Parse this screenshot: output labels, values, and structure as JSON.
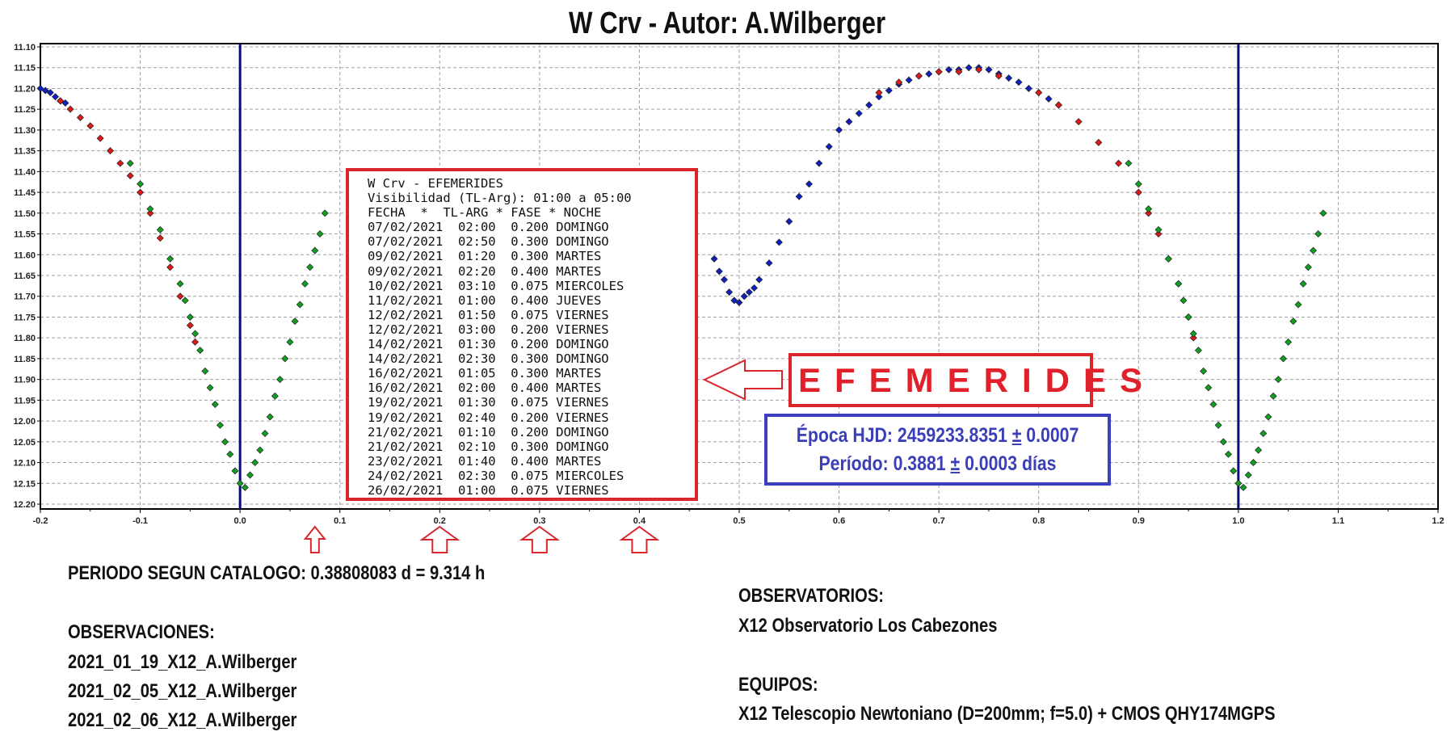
{
  "title": "W Crv - Autor: A.Wilberger",
  "colors": {
    "blue_series": "#1020c0",
    "red_series": "#e01818",
    "green_series": "#10a020",
    "epoch_line": "#0a0a80",
    "grid": "#a0a0a0",
    "ephem_border": "#d9262c",
    "epoca_border": "#3b3fc0"
  },
  "chart_data": {
    "type": "scatter",
    "title": "W Crv - Autor: A.Wilberger",
    "xlabel": "",
    "ylabel": "",
    "xlim": [
      -0.2,
      1.2
    ],
    "ylim": [
      12.2,
      11.1
    ],
    "y_inverted": true,
    "grid": true,
    "x_ticks": [
      "-0.2",
      "-0.1",
      "0.0",
      "0.1",
      "0.2",
      "0.3",
      "0.4",
      "0.5",
      "0.6",
      "0.7",
      "0.8",
      "0.9",
      "1.0",
      "1.1",
      "1.2"
    ],
    "y_ticks": [
      "11.10",
      "11.15",
      "11.20",
      "11.25",
      "11.30",
      "11.35",
      "11.40",
      "11.45",
      "11.50",
      "11.55",
      "11.60",
      "11.65",
      "11.70",
      "11.75",
      "11.80",
      "11.85",
      "11.90",
      "11.95",
      "12.00",
      "12.05",
      "12.10",
      "12.15",
      "12.20"
    ],
    "vertical_lines": [
      0.0,
      1.0
    ],
    "series": [
      {
        "color": "#1020c0",
        "points": [
          [
            -0.2,
            11.2
          ],
          [
            -0.195,
            11.205
          ],
          [
            -0.19,
            11.21
          ],
          [
            -0.185,
            11.22
          ],
          [
            -0.18,
            11.23
          ],
          [
            -0.175,
            11.235
          ],
          [
            0.475,
            11.61
          ],
          [
            0.48,
            11.64
          ],
          [
            0.485,
            11.66
          ],
          [
            0.49,
            11.69
          ],
          [
            0.495,
            11.71
          ],
          [
            0.5,
            11.715
          ],
          [
            0.505,
            11.7
          ],
          [
            0.51,
            11.69
          ],
          [
            0.515,
            11.68
          ],
          [
            0.52,
            11.66
          ],
          [
            0.53,
            11.62
          ],
          [
            0.54,
            11.57
          ],
          [
            0.55,
            11.52
          ],
          [
            0.56,
            11.46
          ],
          [
            0.57,
            11.43
          ],
          [
            0.58,
            11.38
          ],
          [
            0.59,
            11.34
          ],
          [
            0.6,
            11.3
          ],
          [
            0.61,
            11.28
          ],
          [
            0.62,
            11.26
          ],
          [
            0.63,
            11.24
          ],
          [
            0.64,
            11.22
          ],
          [
            0.65,
            11.205
          ],
          [
            0.66,
            11.19
          ],
          [
            0.67,
            11.18
          ],
          [
            0.68,
            11.17
          ],
          [
            0.69,
            11.165
          ],
          [
            0.7,
            11.16
          ],
          [
            0.71,
            11.155
          ],
          [
            0.72,
            11.155
          ],
          [
            0.73,
            11.15
          ],
          [
            0.74,
            11.15
          ],
          [
            0.75,
            11.155
          ],
          [
            0.76,
            11.165
          ],
          [
            0.77,
            11.175
          ],
          [
            0.78,
            11.185
          ],
          [
            0.79,
            11.2
          ],
          [
            0.8,
            11.21
          ],
          [
            0.81,
            11.225
          ],
          [
            0.82,
            11.24
          ]
        ]
      },
      {
        "color": "#e01818",
        "points": [
          [
            -0.18,
            11.23
          ],
          [
            -0.17,
            11.25
          ],
          [
            -0.16,
            11.27
          ],
          [
            -0.15,
            11.29
          ],
          [
            -0.14,
            11.32
          ],
          [
            -0.13,
            11.35
          ],
          [
            -0.12,
            11.38
          ],
          [
            -0.11,
            11.41
          ],
          [
            -0.1,
            11.45
          ],
          [
            -0.09,
            11.5
          ],
          [
            -0.08,
            11.56
          ],
          [
            -0.07,
            11.63
          ],
          [
            -0.06,
            11.7
          ],
          [
            -0.05,
            11.77
          ],
          [
            -0.045,
            11.81
          ],
          [
            0.64,
            11.21
          ],
          [
            0.66,
            11.185
          ],
          [
            0.68,
            11.17
          ],
          [
            0.7,
            11.16
          ],
          [
            0.72,
            11.16
          ],
          [
            0.74,
            11.155
          ],
          [
            0.76,
            11.17
          ],
          [
            0.8,
            11.21
          ],
          [
            0.82,
            11.24
          ],
          [
            0.84,
            11.28
          ],
          [
            0.86,
            11.33
          ],
          [
            0.88,
            11.38
          ],
          [
            0.9,
            11.45
          ],
          [
            0.91,
            11.5
          ],
          [
            0.92,
            11.55
          ],
          [
            0.93,
            11.61
          ],
          [
            0.94,
            11.67
          ],
          [
            0.95,
            11.75
          ],
          [
            0.955,
            11.8
          ]
        ]
      },
      {
        "color": "#10a020",
        "points": [
          [
            -0.11,
            11.38
          ],
          [
            -0.1,
            11.43
          ],
          [
            -0.09,
            11.49
          ],
          [
            -0.08,
            11.54
          ],
          [
            -0.07,
            11.61
          ],
          [
            -0.06,
            11.67
          ],
          [
            -0.055,
            11.71
          ],
          [
            -0.05,
            11.75
          ],
          [
            -0.045,
            11.79
          ],
          [
            -0.04,
            11.83
          ],
          [
            -0.035,
            11.88
          ],
          [
            -0.03,
            11.92
          ],
          [
            -0.025,
            11.96
          ],
          [
            -0.02,
            12.01
          ],
          [
            -0.015,
            12.05
          ],
          [
            -0.01,
            12.08
          ],
          [
            -0.005,
            12.12
          ],
          [
            0.0,
            12.15
          ],
          [
            0.005,
            12.16
          ],
          [
            0.01,
            12.13
          ],
          [
            0.015,
            12.1
          ],
          [
            0.02,
            12.07
          ],
          [
            0.025,
            12.03
          ],
          [
            0.03,
            11.99
          ],
          [
            0.035,
            11.94
          ],
          [
            0.04,
            11.9
          ],
          [
            0.045,
            11.85
          ],
          [
            0.05,
            11.81
          ],
          [
            0.055,
            11.76
          ],
          [
            0.06,
            11.72
          ],
          [
            0.065,
            11.67
          ],
          [
            0.07,
            11.63
          ],
          [
            0.075,
            11.59
          ],
          [
            0.08,
            11.55
          ],
          [
            0.085,
            11.5
          ],
          [
            0.89,
            11.38
          ],
          [
            0.9,
            11.43
          ],
          [
            0.91,
            11.49
          ],
          [
            0.92,
            11.54
          ],
          [
            0.93,
            11.61
          ],
          [
            0.94,
            11.67
          ],
          [
            0.945,
            11.71
          ],
          [
            0.95,
            11.75
          ],
          [
            0.955,
            11.79
          ],
          [
            0.96,
            11.83
          ],
          [
            0.965,
            11.88
          ],
          [
            0.97,
            11.92
          ],
          [
            0.975,
            11.96
          ],
          [
            0.98,
            12.01
          ],
          [
            0.985,
            12.05
          ],
          [
            0.99,
            12.08
          ],
          [
            0.995,
            12.12
          ],
          [
            1.0,
            12.15
          ],
          [
            1.005,
            12.16
          ],
          [
            1.01,
            12.13
          ],
          [
            1.015,
            12.1
          ],
          [
            1.02,
            12.07
          ],
          [
            1.025,
            12.03
          ],
          [
            1.03,
            11.99
          ],
          [
            1.035,
            11.94
          ],
          [
            1.04,
            11.9
          ],
          [
            1.045,
            11.85
          ],
          [
            1.05,
            11.81
          ],
          [
            1.055,
            11.76
          ],
          [
            1.06,
            11.72
          ],
          [
            1.065,
            11.67
          ],
          [
            1.07,
            11.63
          ],
          [
            1.075,
            11.59
          ],
          [
            1.08,
            11.55
          ],
          [
            1.085,
            11.5
          ]
        ]
      }
    ],
    "phase_markers": [
      0.075,
      0.2,
      0.3,
      0.4
    ]
  },
  "ephemerides": {
    "lines": [
      "W Crv - EFEMERIDES",
      "Visibilidad (TL-Arg): 01:00 a 05:00",
      "FECHA  *  TL-ARG * FASE * NOCHE"
    ],
    "rows": [
      "07/02/2021  02:00  0.200 DOMINGO",
      "07/02/2021  02:50  0.300 DOMINGO",
      "09/02/2021  01:20  0.300 MARTES",
      "09/02/2021  02:20  0.400 MARTES",
      "10/02/2021  03:10  0.075 MIERCOLES",
      "11/02/2021  01:00  0.400 JUEVES",
      "12/02/2021  01:50  0.075 VIERNES",
      "12/02/2021  03:00  0.200 VIERNES",
      "14/02/2021  01:30  0.200 DOMINGO",
      "14/02/2021  02:30  0.300 DOMINGO",
      "16/02/2021  01:05  0.300 MARTES",
      "16/02/2021  02:00  0.400 MARTES",
      "19/02/2021  01:30  0.075 VIERNES",
      "19/02/2021  02:40  0.200 VIERNES",
      "21/02/2021  01:10  0.200 DOMINGO",
      "21/02/2021  02:10  0.300 DOMINGO",
      "23/02/2021  01:40  0.400 MARTES",
      "24/02/2021  02:30  0.075 MIERCOLES",
      "26/02/2021  01:00  0.075 VIERNES"
    ]
  },
  "efemerides_label": "EFEMERIDES",
  "epoca": {
    "prefix": "Época HJD: 2459233.8351 ",
    "pm": "±",
    "suffix": " 0.0007"
  },
  "periodo": {
    "prefix": "Período: 0.3881 ",
    "pm": "±",
    "suffix": " 0.0003 días"
  },
  "catalog_period": "PERIODO SEGUN CATALOGO: 0.38808083 d = 9.314 h",
  "observaciones": {
    "heading": "OBSERVACIONES:",
    "items": [
      "2021_01_19_X12_A.Wilberger",
      "2021_02_05_X12_A.Wilberger",
      "2021_02_06_X12_A.Wilberger"
    ]
  },
  "observatorios": {
    "heading": "OBSERVATORIOS:",
    "items": [
      "X12 Observatorio Los Cabezones"
    ]
  },
  "equipos": {
    "heading": "EQUIPOS:",
    "items": [
      "X12 Telescopio Newtoniano (D=200mm; f=5.0) + CMOS QHY174MGPS"
    ]
  }
}
